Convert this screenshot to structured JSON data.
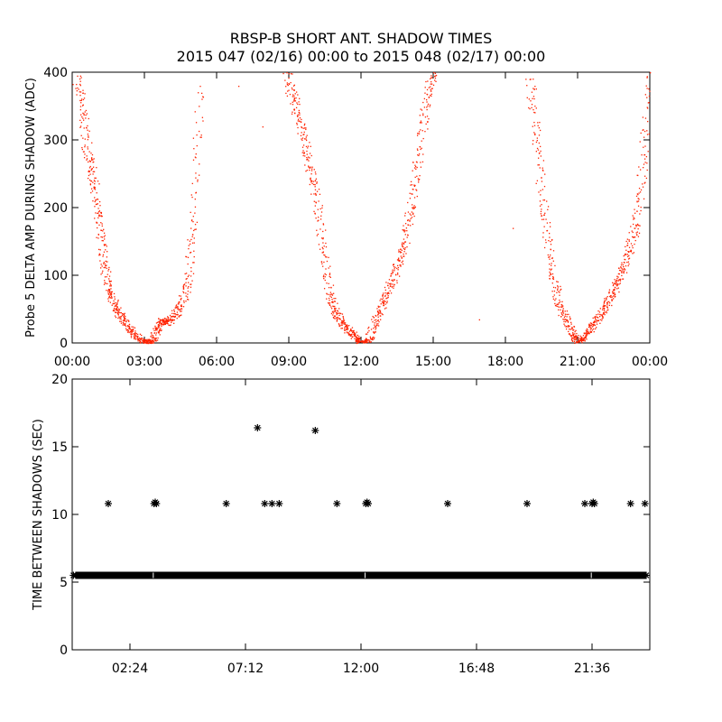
{
  "title": {
    "line1": "RBSP-B SHORT ANT. SHADOW TIMES",
    "line2": "2015 047 (02/16) 00:00 to 2015 048 (02/17) 00:00"
  },
  "chart_data": [
    {
      "type": "scatter",
      "name": "delta-amp-panel",
      "ylabel": "Probe 5 DELTA AMP DURING SHADOW (ADC)",
      "xlabel": "",
      "xunit": "hours",
      "xlim": [
        0,
        24
      ],
      "ylim": [
        0,
        400
      ],
      "xticks": [
        0,
        3,
        6,
        9,
        12,
        15,
        18,
        21,
        24
      ],
      "xtick_labels": [
        "00:00",
        "03:00",
        "06:00",
        "09:00",
        "12:00",
        "15:00",
        "18:00",
        "21:00",
        "00:00"
      ],
      "yticks": [
        0,
        100,
        200,
        300,
        400
      ],
      "ytick_labels": [
        "0",
        "100",
        "200",
        "300",
        "400"
      ],
      "marker_color": "#ff2200",
      "marker": "dot",
      "series": [
        {
          "name": "shadow-dip-1",
          "x": [
            0.2,
            0.45,
            0.7,
            0.9,
            1.1,
            1.3,
            1.5,
            1.75,
            2.0,
            2.3,
            2.6,
            2.9,
            3.1,
            3.3,
            3.5,
            3.7,
            3.9,
            4.2,
            4.5,
            4.8,
            5.0,
            5.3
          ],
          "y": [
            395,
            330,
            270,
            230,
            175,
            120,
            80,
            55,
            40,
            25,
            12,
            4,
            1,
            3,
            20,
            35,
            30,
            40,
            55,
            90,
            180,
            380
          ]
        },
        {
          "name": "shadow-dip-2",
          "x": [
            8.9,
            9.2,
            9.5,
            9.8,
            10.1,
            10.4,
            10.7,
            10.95,
            11.2,
            11.5,
            11.8,
            12.0,
            12.3,
            12.6,
            12.9,
            13.2,
            13.5,
            13.8,
            14.1,
            14.4,
            14.7,
            15.0
          ],
          "y": [
            400,
            360,
            320,
            270,
            220,
            140,
            70,
            45,
            30,
            18,
            8,
            2,
            5,
            35,
            60,
            85,
            115,
            150,
            205,
            280,
            360,
            400
          ]
        },
        {
          "name": "shadow-dip-3",
          "x": [
            19.0,
            19.3,
            19.6,
            19.9,
            20.2,
            20.5,
            20.8,
            21.0,
            21.3,
            21.6,
            21.9,
            22.2,
            22.5,
            22.8,
            23.1,
            23.4,
            23.7,
            24.0
          ],
          "y": [
            390,
            300,
            190,
            110,
            60,
            35,
            12,
            3,
            10,
            25,
            40,
            60,
            80,
            105,
            135,
            175,
            260,
            400
          ]
        },
        {
          "name": "outliers",
          "x": [
            6.9,
            7.9,
            16.9,
            18.3
          ],
          "y": [
            380,
            320,
            35,
            170
          ]
        }
      ]
    },
    {
      "type": "scatter",
      "name": "time-between-shadows-panel",
      "ylabel": "TIME BETWEEN SHADOWS (SEC)",
      "xlabel": "",
      "xunit": "hours",
      "xlim": [
        0,
        24
      ],
      "ylim": [
        0,
        20
      ],
      "xticks": [
        2.4,
        7.2,
        12.0,
        16.8,
        21.6
      ],
      "xtick_labels": [
        "02:24",
        "07:12",
        "12:00",
        "16:48",
        "21:36"
      ],
      "yticks": [
        0,
        5,
        10,
        15,
        20
      ],
      "ytick_labels": [
        "0",
        "5",
        "10",
        "15",
        "20"
      ],
      "marker_color": "#000000",
      "marker": "asterisk",
      "baseline": {
        "y": 5.5,
        "x_start": 0.0,
        "x_end": 24.0,
        "step": 0.1
      },
      "points": {
        "x": [
          1.5,
          3.4,
          3.45,
          3.5,
          6.4,
          7.7,
          8.0,
          8.3,
          8.6,
          10.1,
          11.0,
          12.2,
          12.25,
          12.3,
          15.6,
          18.9,
          21.3,
          21.6,
          21.65,
          21.7,
          23.2,
          23.8
        ],
        "y": [
          10.8,
          10.8,
          10.9,
          10.8,
          10.8,
          16.4,
          10.8,
          10.8,
          10.8,
          16.2,
          10.8,
          10.8,
          10.9,
          10.8,
          10.8,
          10.8,
          10.8,
          10.8,
          10.9,
          10.8,
          10.8,
          10.8
        ]
      }
    }
  ]
}
